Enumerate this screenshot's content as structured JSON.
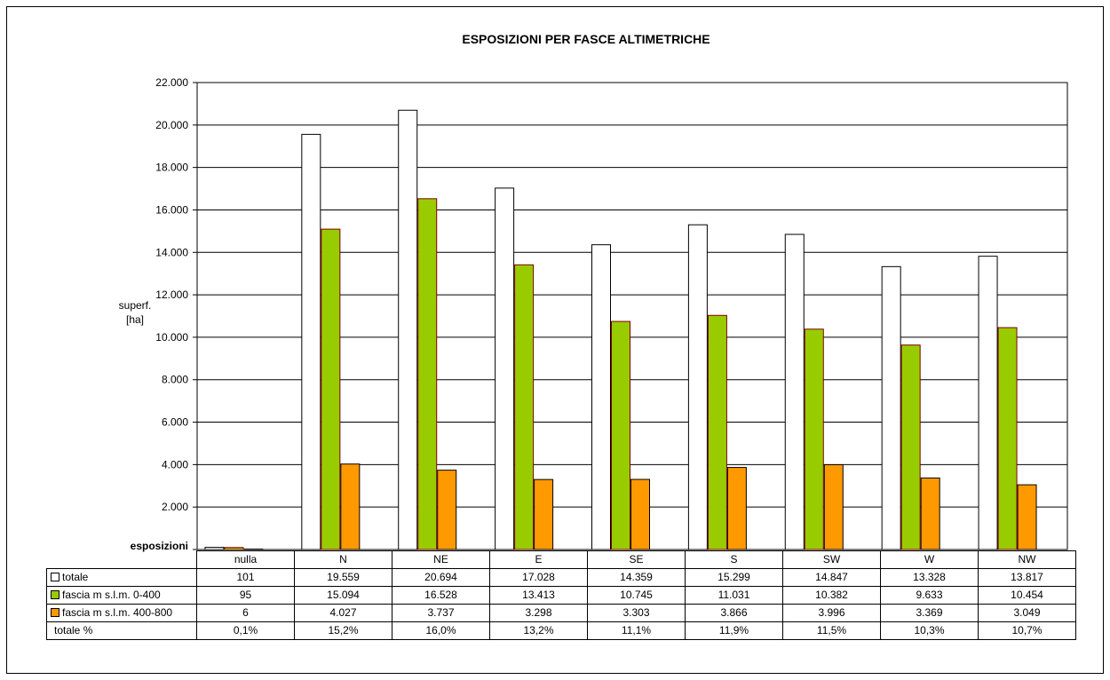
{
  "chart_data": {
    "type": "bar",
    "title": "ESPOSIZIONI PER FASCE ALTIMETRICHE",
    "ylabel_lines": [
      "superf.",
      "[ha]"
    ],
    "xlabel": "esposizioni",
    "categories": [
      "nulla",
      "N",
      "NE",
      "E",
      "SE",
      "S",
      "SW",
      "W",
      "NW"
    ],
    "ylim": [
      0,
      22000
    ],
    "yticks": [
      "",
      "2.000",
      "4.000",
      "6.000",
      "8.000",
      "10.000",
      "12.000",
      "14.000",
      "16.000",
      "18.000",
      "20.000",
      "22.000"
    ],
    "grid": true,
    "series": [
      {
        "name": "totale",
        "color": "#FFFFFF",
        "edge": "#000000",
        "values": [
          101,
          19559,
          20694,
          17028,
          14359,
          15299,
          14847,
          13328,
          13817
        ],
        "labels": [
          "101",
          "19.559",
          "20.694",
          "17.028",
          "14.359",
          "15.299",
          "14.847",
          "13.328",
          "13.817"
        ]
      },
      {
        "name": "fascia m s.l.m. 0-400",
        "color": "#99CC00",
        "edge": "#800000",
        "values": [
          95,
          15094,
          16528,
          13413,
          10745,
          11031,
          10382,
          9633,
          10454
        ],
        "labels": [
          "95",
          "15.094",
          "16.528",
          "13.413",
          "10.745",
          "11.031",
          "10.382",
          "9.633",
          "10.454"
        ]
      },
      {
        "name": "fascia m s.l.m. 400-800",
        "color": "#FF9900",
        "edge": "#000000",
        "values": [
          6,
          4027,
          3737,
          3298,
          3303,
          3866,
          3996,
          3369,
          3049
        ],
        "labels": [
          "6",
          "4.027",
          "3.737",
          "3.298",
          "3.303",
          "3.866",
          "3.996",
          "3.369",
          "3.049"
        ]
      }
    ],
    "extra_row": {
      "label": "totale %",
      "values": [
        "0,1%",
        "15,2%",
        "16,0%",
        "13,2%",
        "11,1%",
        "11,9%",
        "11,5%",
        "10,3%",
        "10,7%"
      ]
    }
  }
}
